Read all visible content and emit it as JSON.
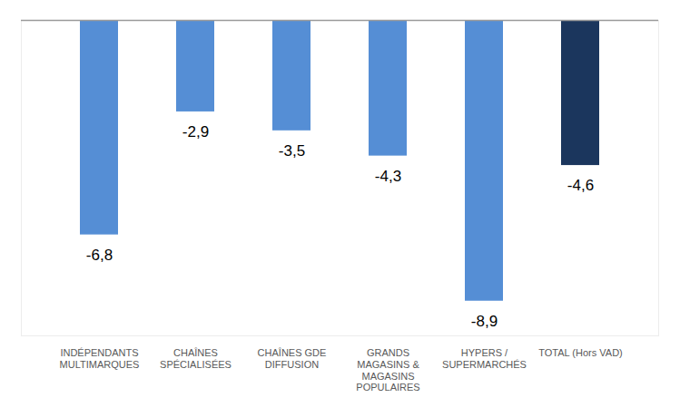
{
  "chart_data": {
    "type": "bar",
    "categories": [
      "INDÉPENDANTS\nMULTIMARQUES",
      "CHAÎNES\nSPÉCIALISÉES",
      "CHAÎNES GDE\nDIFFUSION",
      "GRANDS\nMAGASINS &\nMAGASINS\nPOPULAIRES",
      "HYPERS /\nSUPERMARCHÉS",
      "TOTAL (Hors VAD)"
    ],
    "values": [
      -6.8,
      -2.9,
      -3.5,
      -4.3,
      -8.9,
      -4.6
    ],
    "value_labels": [
      "-6,8",
      "-2,9",
      "-3,5",
      "-4,3",
      "-8,9",
      "-4,6"
    ],
    "colors": [
      "#558ed5",
      "#558ed5",
      "#558ed5",
      "#558ed5",
      "#558ed5",
      "#1b365d"
    ],
    "ylim": [
      -10,
      0
    ],
    "data_labels": true,
    "tick_labels": "x",
    "grid": false
  }
}
